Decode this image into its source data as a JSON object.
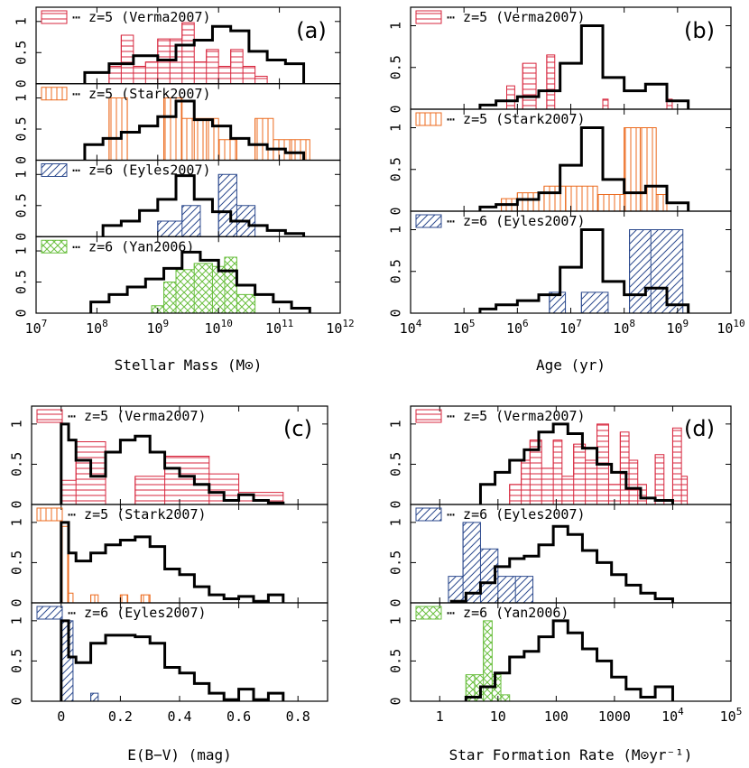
{
  "colors": {
    "red": "#d7263d",
    "orange": "#ec6b1f",
    "blue": "#2c4a8e",
    "green": "#6abf3f",
    "black": "#000000"
  },
  "chart_data": [
    {
      "id": "a",
      "type": "histogram",
      "panel_tag": "(a)",
      "xlabel": "Stellar Mass (M⊙)",
      "xscale": "log",
      "xlim": [
        7,
        12
      ],
      "xticks": [
        "10^7",
        "10^8",
        "10^9",
        "10^10",
        "10^11",
        "10^12"
      ],
      "subplots": [
        {
          "legend": "⋯ z=5 (Verma2007)",
          "color": "red",
          "pattern": "hlines",
          "ylim": [
            0,
            1.2
          ],
          "yticks": [
            "0",
            "0.5",
            "1"
          ],
          "black": {
            "edges": [
              7.8,
              8.2,
              8.6,
              9.0,
              9.3,
              9.6,
              9.9,
              10.2,
              10.5,
              10.8,
              11.1,
              11.4
            ],
            "values": [
              0.18,
              0.32,
              0.45,
              0.38,
              0.62,
              0.7,
              0.92,
              0.85,
              0.52,
              0.38,
              0.32
            ]
          },
          "colored": {
            "edges": [
              8.2,
              8.4,
              8.6,
              8.8,
              9.0,
              9.2,
              9.4,
              9.6,
              9.8,
              10.0,
              10.2,
              10.4,
              10.6,
              10.8
            ],
            "values": [
              0.28,
              0.78,
              0.28,
              0.35,
              0.72,
              0.72,
              0.98,
              0.35,
              0.55,
              0.28,
              0.55,
              0.28,
              0.12
            ]
          }
        },
        {
          "legend": "⋯ z=5 (Stark2007)",
          "color": "orange",
          "pattern": "vlines",
          "ylim": [
            0,
            1.2
          ],
          "yticks": [
            "0",
            "0.5",
            "1"
          ],
          "black": {
            "edges": [
              7.8,
              8.1,
              8.4,
              8.7,
              9.0,
              9.3,
              9.6,
              9.9,
              10.2,
              10.5,
              10.8,
              11.1,
              11.4
            ],
            "values": [
              0.25,
              0.35,
              0.45,
              0.55,
              0.7,
              0.95,
              0.65,
              0.55,
              0.35,
              0.25,
              0.18,
              0.12
            ]
          },
          "colored": {
            "edges": [
              8.2,
              8.5,
              9.1,
              9.4,
              9.6,
              9.8,
              10.0,
              10.3,
              10.6,
              10.9,
              11.2,
              11.5
            ],
            "values": [
              1.0,
              0.0,
              1.0,
              0.67,
              0.67,
              0.67,
              0.33,
              0.0,
              0.67,
              0.33,
              0.33
            ]
          }
        },
        {
          "legend": "⋯ z=6 (Eyles2007)",
          "color": "blue",
          "pattern": "diag",
          "ylim": [
            0,
            1.2
          ],
          "yticks": [
            "0",
            "0.5",
            "1"
          ],
          "black": {
            "edges": [
              8.1,
              8.4,
              8.7,
              9.0,
              9.3,
              9.6,
              9.9,
              10.2,
              10.5,
              10.8,
              11.1,
              11.4
            ],
            "values": [
              0.18,
              0.25,
              0.42,
              0.6,
              0.98,
              0.6,
              0.4,
              0.25,
              0.18,
              0.1,
              0.05
            ]
          },
          "colored": {
            "edges": [
              9.0,
              9.4,
              9.7,
              10.0,
              10.3,
              10.6
            ],
            "values": [
              0.25,
              0.5,
              0.0,
              1.0,
              0.5
            ]
          }
        },
        {
          "legend": "⋯ z=6 (Yan2006)",
          "color": "green",
          "pattern": "cross",
          "ylim": [
            0,
            1.2
          ],
          "yticks": [
            "0",
            "0.5",
            "1"
          ],
          "black": {
            "edges": [
              7.9,
              8.2,
              8.5,
              8.8,
              9.1,
              9.4,
              9.7,
              10.0,
              10.3,
              10.6,
              10.9,
              11.2,
              11.5
            ],
            "values": [
              0.18,
              0.3,
              0.42,
              0.55,
              0.72,
              0.98,
              0.85,
              0.68,
              0.45,
              0.3,
              0.18,
              0.08
            ]
          },
          "colored": {
            "edges": [
              8.9,
              9.1,
              9.3,
              9.6,
              9.9,
              10.1,
              10.3,
              10.6
            ],
            "values": [
              0.12,
              0.5,
              0.7,
              0.8,
              0.75,
              0.9,
              0.3
            ]
          }
        }
      ]
    },
    {
      "id": "b",
      "type": "histogram",
      "panel_tag": "(b)",
      "xlabel": "Age (yr)",
      "xscale": "log",
      "xlim": [
        4,
        10
      ],
      "xticks": [
        "10^4",
        "10^5",
        "10^6",
        "10^7",
        "10^8",
        "10^9",
        "10^10"
      ],
      "subplots": [
        {
          "legend": "⋯ z=5 (Verma2007)",
          "color": "red",
          "pattern": "hlines",
          "ylim": [
            0,
            1.2
          ],
          "yticks": [
            "0",
            "0.5",
            "1"
          ],
          "black": {
            "edges": [
              5.3,
              5.6,
              6.0,
              6.4,
              6.8,
              7.2,
              7.6,
              8.0,
              8.4,
              8.8,
              9.2
            ],
            "values": [
              0.05,
              0.1,
              0.15,
              0.22,
              0.55,
              1.0,
              0.38,
              0.22,
              0.3,
              0.1
            ]
          },
          "colored": {
            "edges": [
              5.8,
              5.95,
              6.1,
              6.35,
              6.55,
              6.7,
              7.6,
              7.7,
              8.8,
              8.9
            ],
            "values": [
              0.28,
              0.0,
              0.55,
              0.0,
              0.65,
              0.0,
              0.12,
              0.0,
              0.12
            ]
          }
        },
        {
          "legend": "⋯ z=5 (Stark2007)",
          "color": "orange",
          "pattern": "vlines",
          "ylim": [
            0,
            1.2
          ],
          "yticks": [
            "0",
            "0.5",
            "1"
          ],
          "black": {
            "edges": [
              5.3,
              5.6,
              6.0,
              6.4,
              6.8,
              7.2,
              7.6,
              8.0,
              8.4,
              8.8,
              9.2
            ],
            "values": [
              0.05,
              0.08,
              0.14,
              0.22,
              0.55,
              1.0,
              0.38,
              0.22,
              0.3,
              0.1
            ]
          },
          "colored": {
            "edges": [
              5.7,
              6.0,
              6.3,
              6.5,
              6.9,
              7.5,
              8.0,
              8.3,
              8.6,
              8.8
            ],
            "values": [
              0.15,
              0.22,
              0.22,
              0.3,
              0.3,
              0.2,
              1.0,
              1.0,
              0.2
            ]
          }
        },
        {
          "legend": "⋯ z=6 (Eyles2007)",
          "color": "blue",
          "pattern": "diag",
          "ylim": [
            0,
            1.2
          ],
          "yticks": [
            "0",
            "0.5",
            "1"
          ],
          "black": {
            "edges": [
              5.3,
              5.6,
              6.0,
              6.4,
              6.8,
              7.2,
              7.6,
              8.0,
              8.4,
              8.8,
              9.2
            ],
            "values": [
              0.05,
              0.1,
              0.15,
              0.22,
              0.55,
              1.0,
              0.38,
              0.22,
              0.3,
              0.1
            ]
          },
          "colored": {
            "edges": [
              6.6,
              6.9,
              7.2,
              7.7,
              8.1,
              8.5,
              9.1
            ],
            "values": [
              0.25,
              0.0,
              0.25,
              0.0,
              1.0,
              1.0
            ]
          }
        }
      ]
    },
    {
      "id": "c",
      "type": "histogram",
      "panel_tag": "(c)",
      "xlabel": "E(B−V) (mag)",
      "xscale": "linear",
      "xlim": [
        -0.1,
        0.9
      ],
      "xticks": [
        "0",
        "0.2",
        "0.4",
        "0.6",
        "0.8"
      ],
      "subplots": [
        {
          "legend": "⋯ z=5 (Verma2007)",
          "color": "red",
          "pattern": "hlines",
          "ylim": [
            0,
            1.2
          ],
          "yticks": [
            "0",
            "0.5",
            "1"
          ],
          "black": {
            "edges": [
              0.0,
              0.025,
              0.05,
              0.1,
              0.15,
              0.2,
              0.25,
              0.3,
              0.35,
              0.4,
              0.45,
              0.5,
              0.55,
              0.6,
              0.65,
              0.7,
              0.75
            ],
            "values": [
              1.0,
              0.8,
              0.55,
              0.35,
              0.65,
              0.8,
              0.85,
              0.65,
              0.45,
              0.35,
              0.25,
              0.15,
              0.05,
              0.12,
              0.05,
              0.02
            ]
          },
          "colored": {
            "edges": [
              0.0,
              0.05,
              0.15,
              0.25,
              0.35,
              0.5,
              0.6,
              0.75
            ],
            "values": [
              0.3,
              0.78,
              0.0,
              0.35,
              0.6,
              0.38,
              0.15
            ]
          }
        },
        {
          "legend": "⋯ z=5 (Stark2007)",
          "color": "orange",
          "pattern": "vlines",
          "ylim": [
            0,
            1.2
          ],
          "yticks": [
            "0",
            "0.5",
            "1"
          ],
          "black": {
            "edges": [
              0.0,
              0.025,
              0.05,
              0.1,
              0.15,
              0.2,
              0.25,
              0.3,
              0.35,
              0.4,
              0.45,
              0.5,
              0.55,
              0.6,
              0.65,
              0.7,
              0.75
            ],
            "values": [
              1.0,
              0.62,
              0.52,
              0.62,
              0.72,
              0.78,
              0.82,
              0.7,
              0.42,
              0.35,
              0.2,
              0.1,
              0.05,
              0.08,
              0.02,
              0.1
            ]
          },
          "colored": {
            "edges": [
              0.0,
              0.025,
              0.04,
              0.1,
              0.125,
              0.2,
              0.225,
              0.27,
              0.3
            ],
            "values": [
              0.95,
              0.12,
              0.0,
              0.1,
              0.0,
              0.1,
              0.0,
              0.1
            ]
          }
        },
        {
          "legend": "⋯ z=6 (Eyles2007)",
          "color": "blue",
          "pattern": "diag",
          "ylim": [
            0,
            1.2
          ],
          "yticks": [
            "0",
            "0.5",
            "1"
          ],
          "black": {
            "edges": [
              0.0,
              0.025,
              0.05,
              0.1,
              0.15,
              0.2,
              0.25,
              0.3,
              0.35,
              0.4,
              0.45,
              0.5,
              0.55,
              0.6,
              0.65,
              0.7,
              0.75
            ],
            "values": [
              1.0,
              0.55,
              0.48,
              0.72,
              0.82,
              0.82,
              0.8,
              0.72,
              0.42,
              0.35,
              0.22,
              0.1,
              0.02,
              0.15,
              0.02,
              0.1
            ]
          },
          "colored": {
            "edges": [
              0.0,
              0.04,
              0.1,
              0.125,
              0.15
            ],
            "values": [
              1.0,
              0.0,
              0.1,
              0.0
            ]
          }
        }
      ]
    },
    {
      "id": "d",
      "type": "histogram",
      "panel_tag": "(d)",
      "xlabel": "Star Formation Rate (M⊙yr⁻¹)",
      "xscale": "log",
      "xlim": [
        -0.5,
        5
      ],
      "xticks": [
        "1",
        "10",
        "100",
        "1000",
        "10^4",
        "10^5"
      ],
      "subplots": [
        {
          "legend": "⋯ z=5 (Verma2007)",
          "color": "red",
          "pattern": "hlines",
          "ylim": [
            0,
            1.2
          ],
          "yticks": [
            "0",
            "0.5",
            "1"
          ],
          "black": {
            "edges": [
              0.7,
              0.95,
              1.2,
              1.45,
              1.7,
              1.95,
              2.2,
              2.45,
              2.7,
              2.95,
              3.2,
              3.45,
              3.7,
              4.0
            ],
            "values": [
              0.25,
              0.4,
              0.55,
              0.68,
              0.9,
              1.0,
              0.88,
              0.7,
              0.5,
              0.4,
              0.2,
              0.08,
              0.05
            ]
          },
          "colored": {
            "edges": [
              1.2,
              1.4,
              1.55,
              1.75,
              1.95,
              2.1,
              2.3,
              2.5,
              2.7,
              2.9,
              3.1,
              3.25,
              3.4,
              3.55,
              3.7,
              3.85,
              4.0,
              4.15,
              4.25
            ],
            "values": [
              0.25,
              0.55,
              0.8,
              0.45,
              0.8,
              0.35,
              0.75,
              0.55,
              1.0,
              0.25,
              0.9,
              0.55,
              0.25,
              0.0,
              0.62,
              0.0,
              0.95,
              0.35
            ]
          }
        },
        {
          "legend": "⋯ z=6 (Eyles2007)",
          "color": "blue",
          "pattern": "diag",
          "ylim": [
            0,
            1.2
          ],
          "yticks": [
            "0",
            "0.5",
            "1"
          ],
          "black": {
            "edges": [
              0.2,
              0.45,
              0.7,
              0.95,
              1.2,
              1.45,
              1.7,
              1.95,
              2.2,
              2.45,
              2.7,
              2.95,
              3.2,
              3.45,
              3.7,
              4.0
            ],
            "values": [
              0.02,
              0.12,
              0.25,
              0.45,
              0.55,
              0.58,
              0.72,
              0.95,
              0.85,
              0.65,
              0.5,
              0.35,
              0.22,
              0.12,
              0.05
            ]
          },
          "colored": {
            "edges": [
              0.15,
              0.4,
              0.7,
              1.0,
              1.3,
              1.6
            ],
            "values": [
              0.33,
              1.0,
              0.67,
              0.33,
              0.33
            ]
          }
        },
        {
          "legend": "⋯ z=6 (Yan2006)",
          "color": "green",
          "pattern": "cross",
          "ylim": [
            0,
            1.2
          ],
          "yticks": [
            "0",
            "0.5",
            "1"
          ],
          "black": {
            "edges": [
              0.45,
              0.7,
              0.95,
              1.2,
              1.45,
              1.7,
              1.95,
              2.2,
              2.45,
              2.7,
              2.95,
              3.2,
              3.45,
              3.7,
              4.0
            ],
            "values": [
              0.05,
              0.18,
              0.35,
              0.55,
              0.62,
              0.8,
              1.0,
              0.85,
              0.65,
              0.5,
              0.3,
              0.15,
              0.05,
              0.18
            ]
          },
          "colored": {
            "edges": [
              0.45,
              0.6,
              0.75,
              0.9,
              1.05,
              1.2
            ],
            "values": [
              0.33,
              0.33,
              1.0,
              0.33,
              0.08
            ]
          }
        }
      ]
    }
  ]
}
